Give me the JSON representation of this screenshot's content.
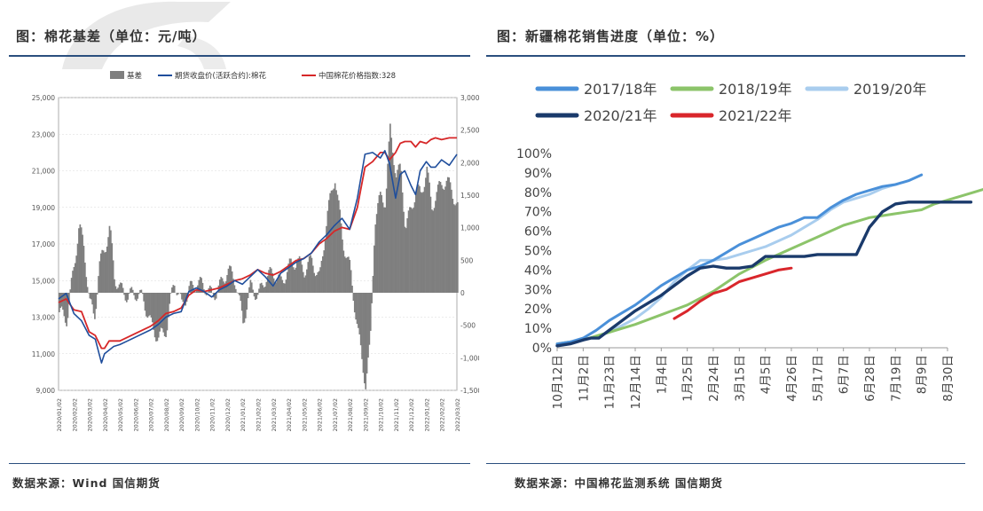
{
  "left_panel": {
    "title": "图：棉花基差（单位：元/吨）",
    "source": "数据来源：Wind   国信期货"
  },
  "right_panel": {
    "title": "图：新疆棉花销售进度（单位：%）",
    "source": "数据来源：中国棉花监测系统   国信期货"
  },
  "colors": {
    "header_rule": "#2b4f7e",
    "basis_bar": "#7f7f7f",
    "futures_line": "#1f4e9c",
    "index_line": "#d62728",
    "s2017": "#4a90d9",
    "s2018": "#8cc46a",
    "s2019": "#a9cdee",
    "s2020": "#1a3a6b",
    "s2021": "#d9262b"
  },
  "chart_data": [
    {
      "type": "bar+line",
      "id": "cotton-basis",
      "legend": [
        "基差",
        "期货收盘价(活跃合约):棉花",
        "中国棉花价格指数:328"
      ],
      "left_axis": {
        "ylim": [
          9000,
          25000
        ],
        "ticks": [
          9000,
          11000,
          13000,
          15000,
          17000,
          19000,
          21000,
          23000,
          25000
        ]
      },
      "right_axis": {
        "ylim": [
          -1500,
          3000
        ],
        "ticks": [
          -1500,
          -1000,
          -500,
          0,
          500,
          1000,
          1500,
          2000,
          2500,
          3000
        ]
      },
      "x_ticks": [
        "2020/01/02",
        "2020/02/02",
        "2020/03/02",
        "2020/04/02",
        "2020/05/02",
        "2020/06/02",
        "2020/07/02",
        "2020/08/02",
        "2020/09/02",
        "2020/10/02",
        "2020/11/02",
        "2020/12/02",
        "2021/01/02",
        "2021/02/02",
        "2021/03/02",
        "2021/04/02",
        "2021/05/02",
        "2021/06/02",
        "2021/07/02",
        "2021/08/02",
        "2021/09/02",
        "2021/10/02",
        "2021/11/02",
        "2021/12/02",
        "2022/01/02",
        "2022/02/02",
        "2022/03/02"
      ],
      "series": [
        {
          "name": "基差",
          "axis": "right",
          "x": [
            0,
            0.5,
            1,
            1.3,
            1.6,
            2,
            2.3,
            2.6,
            3,
            3.3,
            3.6,
            4,
            4.5,
            5,
            5.5,
            6,
            6.5,
            7,
            7.5,
            8,
            8.5,
            9,
            9.5,
            10,
            10.5,
            11,
            11.5,
            12,
            12.5,
            13,
            13.5,
            14,
            14.5,
            15,
            15.5,
            16,
            16.5,
            17,
            17.5,
            18,
            18.5,
            19,
            19.5,
            20,
            20.3,
            20.6,
            21,
            21.3,
            21.6,
            22,
            22.3,
            22.6,
            23,
            23.3,
            23.6,
            24,
            24.3,
            24.6,
            25,
            25.3,
            25.6,
            26
          ],
          "values": [
            -300,
            -400,
            450,
            1050,
            700,
            -150,
            -400,
            400,
            700,
            1000,
            250,
            50,
            -50,
            0,
            -100,
            -500,
            -700,
            -550,
            200,
            -200,
            50,
            150,
            100,
            -50,
            100,
            350,
            200,
            -450,
            100,
            -50,
            250,
            300,
            150,
            400,
            500,
            350,
            500,
            200,
            1200,
            1800,
            800,
            350,
            -600,
            -1400,
            -800,
            1100,
            1500,
            1400,
            2500,
            1800,
            1900,
            1000,
            1300,
            1600,
            1500,
            1900,
            1300,
            1500,
            1700,
            1700,
            1600,
            1300
          ]
        },
        {
          "name": "期货收盘价(活跃合约):棉花",
          "axis": "left",
          "x": [
            0,
            0.5,
            1,
            1.5,
            2,
            2.4,
            2.8,
            3,
            3.3,
            3.6,
            4,
            4.5,
            5,
            6,
            6.5,
            7,
            7.5,
            8,
            8.5,
            9,
            9.5,
            10,
            10.5,
            11,
            11.5,
            12,
            12.5,
            13,
            13.5,
            14,
            14.5,
            15,
            15.5,
            16,
            16.5,
            17,
            17.5,
            18,
            18.5,
            19,
            19.5,
            20,
            20.5,
            21,
            21.3,
            21.6,
            22,
            22.3,
            22.6,
            23,
            23.3,
            23.6,
            24,
            24.3,
            24.6,
            25,
            25.5,
            26
          ],
          "values": [
            14000,
            14300,
            13200,
            12800,
            12000,
            11800,
            10500,
            11000,
            11200,
            11400,
            11500,
            11700,
            11900,
            12300,
            12600,
            13000,
            13200,
            13300,
            14400,
            14600,
            14400,
            14100,
            14500,
            14700,
            15000,
            14800,
            15200,
            15600,
            15200,
            14700,
            15400,
            15700,
            16000,
            16200,
            16500,
            17100,
            17500,
            18000,
            18400,
            17800,
            19500,
            21900,
            22000,
            21700,
            22100,
            21400,
            19500,
            20800,
            21000,
            20200,
            19700,
            21000,
            21500,
            21200,
            21200,
            21600,
            21300,
            21900
          ]
        },
        {
          "name": "中国棉花价格指数:328",
          "axis": "left",
          "x": [
            0,
            0.5,
            1,
            1.5,
            2,
            2.4,
            2.8,
            3,
            3.3,
            3.6,
            4,
            4.5,
            5,
            6,
            6.5,
            7,
            7.5,
            8,
            8.5,
            9,
            9.5,
            10,
            10.5,
            11,
            11.5,
            12,
            12.5,
            13,
            13.5,
            14,
            14.5,
            15,
            15.5,
            16,
            16.5,
            17,
            17.5,
            18,
            18.5,
            19,
            19.5,
            20,
            20.5,
            21,
            21.3,
            21.6,
            22,
            22.3,
            22.6,
            23,
            23.3,
            23.6,
            24,
            24.3,
            24.6,
            25,
            25.5,
            26
          ],
          "values": [
            13800,
            14000,
            13400,
            13300,
            12200,
            12000,
            11300,
            11300,
            11700,
            11700,
            11700,
            11900,
            12100,
            12500,
            12800,
            13200,
            13300,
            13500,
            14200,
            14500,
            14400,
            14500,
            14600,
            14800,
            15000,
            15100,
            15300,
            15600,
            15400,
            15300,
            15500,
            15800,
            16100,
            16200,
            16500,
            17000,
            17300,
            17700,
            17900,
            17800,
            19000,
            21200,
            21500,
            22000,
            22000,
            21600,
            22000,
            22500,
            22600,
            22600,
            22300,
            22600,
            22500,
            22700,
            22800,
            22700,
            22800,
            22800
          ]
        }
      ]
    },
    {
      "type": "line",
      "id": "xinjiang-sales-progress",
      "categories": [
        "10月12日",
        "11月2日",
        "11月23日",
        "12月14日",
        "1月4日",
        "1月25日",
        "2月24日",
        "3月15日",
        "4月5日",
        "4月26日",
        "5月17日",
        "6月7日",
        "6月28日",
        "7月19日",
        "8月9日",
        "8月30日"
      ],
      "ylim": [
        0,
        100
      ],
      "yticks": [
        "0%",
        "10%",
        "20%",
        "30%",
        "40%",
        "50%",
        "60%",
        "70%",
        "80%",
        "90%",
        "100%"
      ],
      "series": [
        {
          "name": "2017/18年",
          "x": [
            0,
            0.5,
            1,
            1.5,
            2,
            2.5,
            3,
            3.5,
            4,
            4.5,
            5,
            5.5,
            6,
            6.5,
            7,
            7.5,
            8,
            8.5,
            9,
            9.5,
            10,
            10.5,
            11,
            11.5,
            12,
            12.5,
            13,
            13.5,
            14
          ],
          "values": [
            2,
            3,
            5,
            9,
            14,
            18,
            22,
            27,
            32,
            36,
            40,
            42,
            45,
            49,
            53,
            56,
            59,
            62,
            64,
            67,
            67,
            72,
            76,
            79,
            81,
            83,
            84,
            86,
            89
          ]
        },
        {
          "name": "2018/19年",
          "x": [
            0,
            1,
            2,
            3,
            4,
            5,
            6,
            7,
            8,
            9,
            10,
            10.5,
            11,
            11.5,
            12,
            12.5,
            13,
            13.5,
            14,
            14.5,
            15,
            15.5,
            16,
            16.5,
            17
          ],
          "values": [
            2,
            4,
            8,
            12,
            17,
            22,
            29,
            38,
            45,
            51,
            57,
            60,
            63,
            65,
            67,
            68,
            69,
            70,
            71,
            74,
            76,
            78,
            80,
            82,
            83
          ]
        },
        {
          "name": "2019/20年",
          "x": [
            0,
            1,
            2,
            3,
            3.5,
            4,
            4.5,
            5,
            5.5,
            6,
            6.5,
            7,
            7.5,
            8,
            8.5,
            9,
            9.5,
            10,
            10.5,
            11,
            11.5,
            12,
            12.5,
            13
          ],
          "values": [
            1,
            4,
            8,
            15,
            20,
            26,
            34,
            40,
            45,
            45,
            46,
            48,
            50,
            52,
            55,
            58,
            62,
            66,
            71,
            75,
            77,
            79,
            82,
            84
          ]
        },
        {
          "name": "2020/21年",
          "x": [
            0,
            0.5,
            1,
            1.3,
            1.6,
            2,
            2.5,
            3,
            3.5,
            4,
            4.5,
            5,
            5.5,
            6,
            6.5,
            7,
            7.5,
            8,
            8.3,
            8.5,
            8.8,
            9,
            9.5,
            10,
            10.5,
            11,
            11.5,
            12,
            12.5,
            13,
            13.5,
            14,
            14.5,
            15,
            15.2,
            15.6,
            15.9
          ],
          "values": [
            1,
            2,
            4,
            5,
            5,
            9,
            14,
            19,
            23,
            27,
            32,
            37,
            41,
            42,
            41,
            41,
            42,
            47,
            47,
            47,
            47,
            47,
            47,
            48,
            48,
            48,
            48,
            62,
            70,
            74,
            75,
            75,
            75,
            75,
            75,
            75,
            75
          ]
        },
        {
          "name": "2021/22年",
          "x": [
            4.5,
            5,
            5.5,
            6,
            6.5,
            7,
            7.5,
            8,
            8.5,
            9
          ],
          "values": [
            15,
            19,
            24,
            28,
            30,
            34,
            36,
            38,
            40,
            41
          ]
        }
      ]
    }
  ]
}
